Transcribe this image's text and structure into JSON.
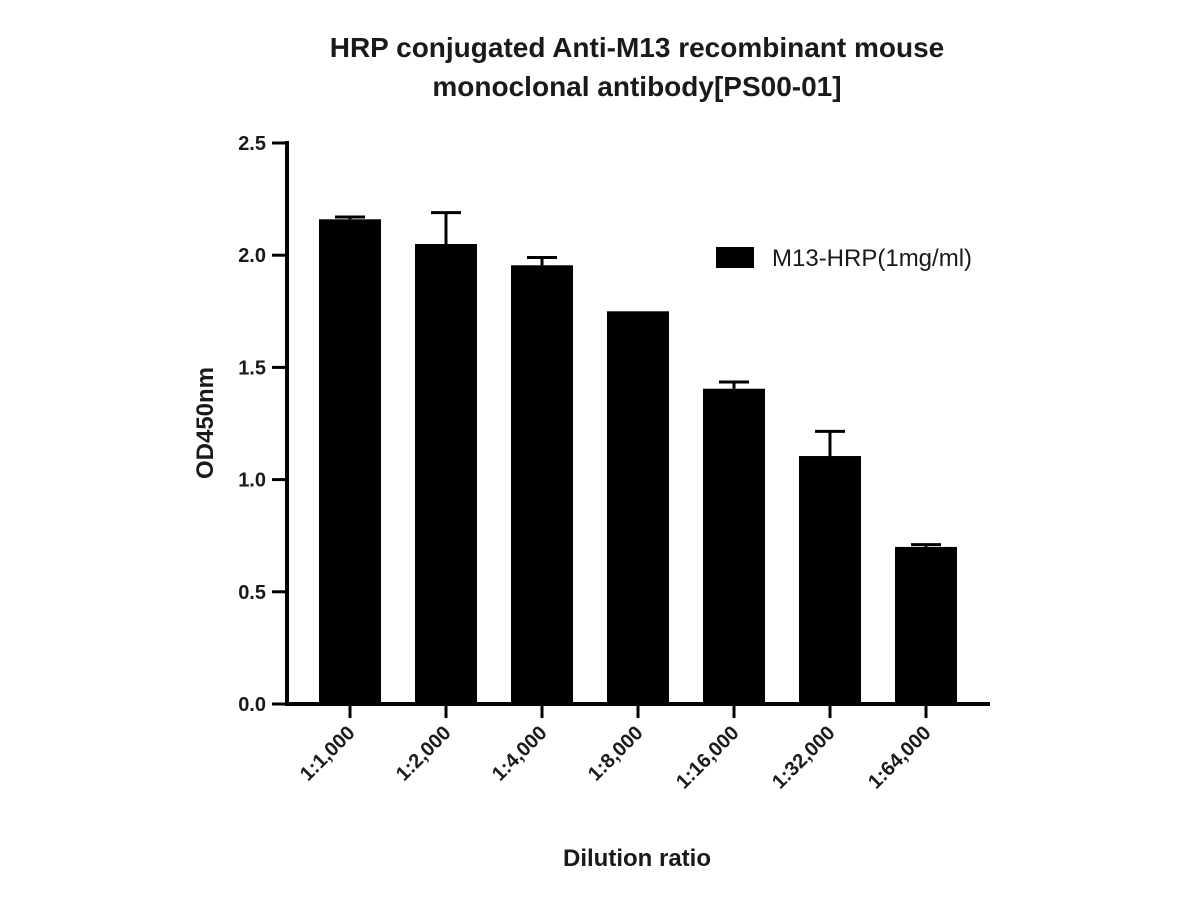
{
  "chart_data": {
    "type": "bar",
    "title_lines": [
      "HRP conjugated Anti-M13 recombinant mouse",
      "monoclonal antibody[PS00-01]"
    ],
    "xlabel": "Dilution ratio",
    "ylabel": "OD450nm",
    "ylim": [
      0,
      2.5
    ],
    "yticks": [
      "0.0",
      "0.5",
      "1.0",
      "1.5",
      "2.0",
      "2.5"
    ],
    "categories": [
      "1:1,000",
      "1:2,000",
      "1:4,000",
      "1:8,000",
      "1:16,000",
      "1:32,000",
      "1:64,000"
    ],
    "series": [
      {
        "name": "M13-HRP(1mg/ml)",
        "values": [
          2.16,
          2.05,
          1.955,
          1.75,
          1.405,
          1.105,
          0.7
        ],
        "errors": [
          0.01,
          0.14,
          0.035,
          0.0,
          0.03,
          0.11,
          0.01
        ],
        "color": "#000000"
      }
    ],
    "legend_position": "top-right",
    "grid": false
  }
}
